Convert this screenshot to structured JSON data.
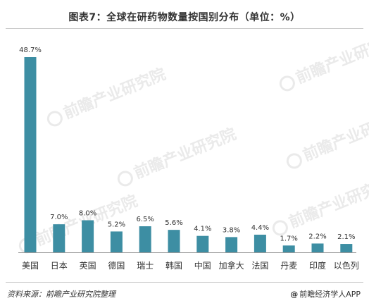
{
  "title": "图表7：全球在研药物数量按国别分布（单位：%）",
  "watermark": "前瞻产业研究院",
  "source": "资料来源：前瞻产业研究院整理",
  "credit": "前瞻经济学人APP",
  "colors": {
    "bar": "#3d8ea3",
    "text": "#333333",
    "axis": "#9a9a9a"
  },
  "chart_data": {
    "type": "bar",
    "title": "图表7：全球在研药物数量按国别分布（单位：%）",
    "categories": [
      "美国",
      "日本",
      "英国",
      "德国",
      "瑞士",
      "韩国",
      "中国",
      "加拿大",
      "法国",
      "丹麦",
      "印度",
      "以色列"
    ],
    "values": [
      48.7,
      7.0,
      8.0,
      5.2,
      6.5,
      5.6,
      4.1,
      3.8,
      4.4,
      1.7,
      2.2,
      2.1
    ],
    "value_labels": [
      "48.7%",
      "7.0%",
      "8.0%",
      "5.2%",
      "6.5%",
      "5.6%",
      "4.1%",
      "3.8%",
      "4.4%",
      "1.7%",
      "2.2%",
      "2.1%"
    ],
    "xlabel": "",
    "ylabel": "",
    "ylim": [
      0,
      55
    ],
    "grid": false,
    "legend": "none"
  }
}
